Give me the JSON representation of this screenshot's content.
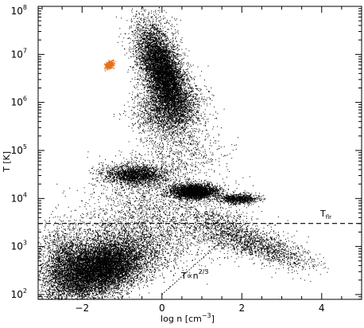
{
  "chart_data": {
    "type": "scatter",
    "xlabel": "log n [cm",
    "xlabel_sup": "−3",
    "xlabel_close": "]",
    "ylabel": "T [K]",
    "xlim": [
      -3.1,
      5.0
    ],
    "ylim_log10": [
      1.9,
      8.0
    ],
    "y_scale": "log",
    "grid": false,
    "legend": "none",
    "x_ticks": [
      {
        "value": -2,
        "label": "−2"
      },
      {
        "value": 0,
        "label": "0"
      },
      {
        "value": 2,
        "label": "2"
      },
      {
        "value": 4,
        "label": "4"
      }
    ],
    "x_minor_ticks": [
      -3,
      -2.5,
      -1.5,
      -1,
      -0.5,
      0.5,
      1,
      1.5,
      2.5,
      3,
      3.5,
      4.5
    ],
    "y_ticks": [
      {
        "exp": 2,
        "base": "10",
        "sup": "2"
      },
      {
        "exp": 3,
        "base": "10",
        "sup": "3"
      },
      {
        "exp": 4,
        "base": "10",
        "sup": "4"
      },
      {
        "exp": 5,
        "base": "10",
        "sup": "5"
      },
      {
        "exp": 6,
        "base": "10",
        "sup": "6"
      },
      {
        "exp": 7,
        "base": "10",
        "sup": "7"
      },
      {
        "exp": 8,
        "base": "10",
        "sup": "8"
      }
    ],
    "annotations": {
      "t_floor_label": "T",
      "t_floor_sub": "flr",
      "adiabat_label": "T∝n",
      "adiabat_sup": "2/3"
    },
    "t_floor_log10": 3.48,
    "adiabat_line": {
      "x": [
        0.0,
        1.6
      ],
      "log10_y": [
        2.0,
        3.2
      ]
    },
    "series": [
      {
        "color": "#000000",
        "clouds": [
          {
            "cx": -1.55,
            "cy": 2.55,
            "sx": 0.55,
            "sy": 0.28,
            "rho": 0.35,
            "n": 9000
          },
          {
            "cx": -2.4,
            "cy": 2.55,
            "sx": 0.35,
            "sy": 0.45,
            "rho": 0.0,
            "n": 2500
          },
          {
            "cx": -0.8,
            "cy": 3.05,
            "sx": 0.9,
            "sy": 0.35,
            "rho": 0.2,
            "n": 2000
          },
          {
            "cx": 1.8,
            "cy": 3.25,
            "sx": 0.65,
            "sy": 0.28,
            "rho": -0.65,
            "n": 1500
          },
          {
            "cx": 2.8,
            "cy": 2.9,
            "sx": 0.55,
            "sy": 0.2,
            "rho": -0.7,
            "n": 600
          },
          {
            "cx": 0.05,
            "cy": 6.6,
            "sx": 0.28,
            "sy": 0.42,
            "rho": -0.55,
            "n": 6000
          },
          {
            "cx": 0.15,
            "cy": 5.9,
            "sx": 0.4,
            "sy": 0.3,
            "rho": 0.1,
            "n": 2500
          },
          {
            "cx": -0.25,
            "cy": 7.1,
            "sx": 0.3,
            "sy": 0.45,
            "rho": -0.2,
            "n": 1200
          },
          {
            "cx": 0.8,
            "cy": 4.15,
            "sx": 0.3,
            "sy": 0.08,
            "rho": 0.0,
            "n": 3000
          },
          {
            "cx": -0.7,
            "cy": 4.5,
            "sx": 0.4,
            "sy": 0.1,
            "rho": 0.0,
            "n": 2000
          },
          {
            "cx": 1.9,
            "cy": 4.0,
            "sx": 0.25,
            "sy": 0.05,
            "rho": 0.0,
            "n": 900
          },
          {
            "cx": -0.5,
            "cy": 4.2,
            "sx": 0.6,
            "sy": 0.4,
            "rho": 0.2,
            "n": 700
          },
          {
            "cx": 0.5,
            "cy": 5.0,
            "sx": 0.5,
            "sy": 0.4,
            "rho": 0.0,
            "n": 700
          },
          {
            "cx": 0.2,
            "cy": 3.6,
            "sx": 1.0,
            "sy": 0.35,
            "rho": 0.1,
            "n": 700
          }
        ]
      },
      {
        "color": "#e8701a",
        "clouds": [
          {
            "cx": -1.32,
            "cy": 6.79,
            "sx": 0.05,
            "sy": 0.04,
            "rho": 0.3,
            "n": 500
          }
        ]
      }
    ]
  }
}
